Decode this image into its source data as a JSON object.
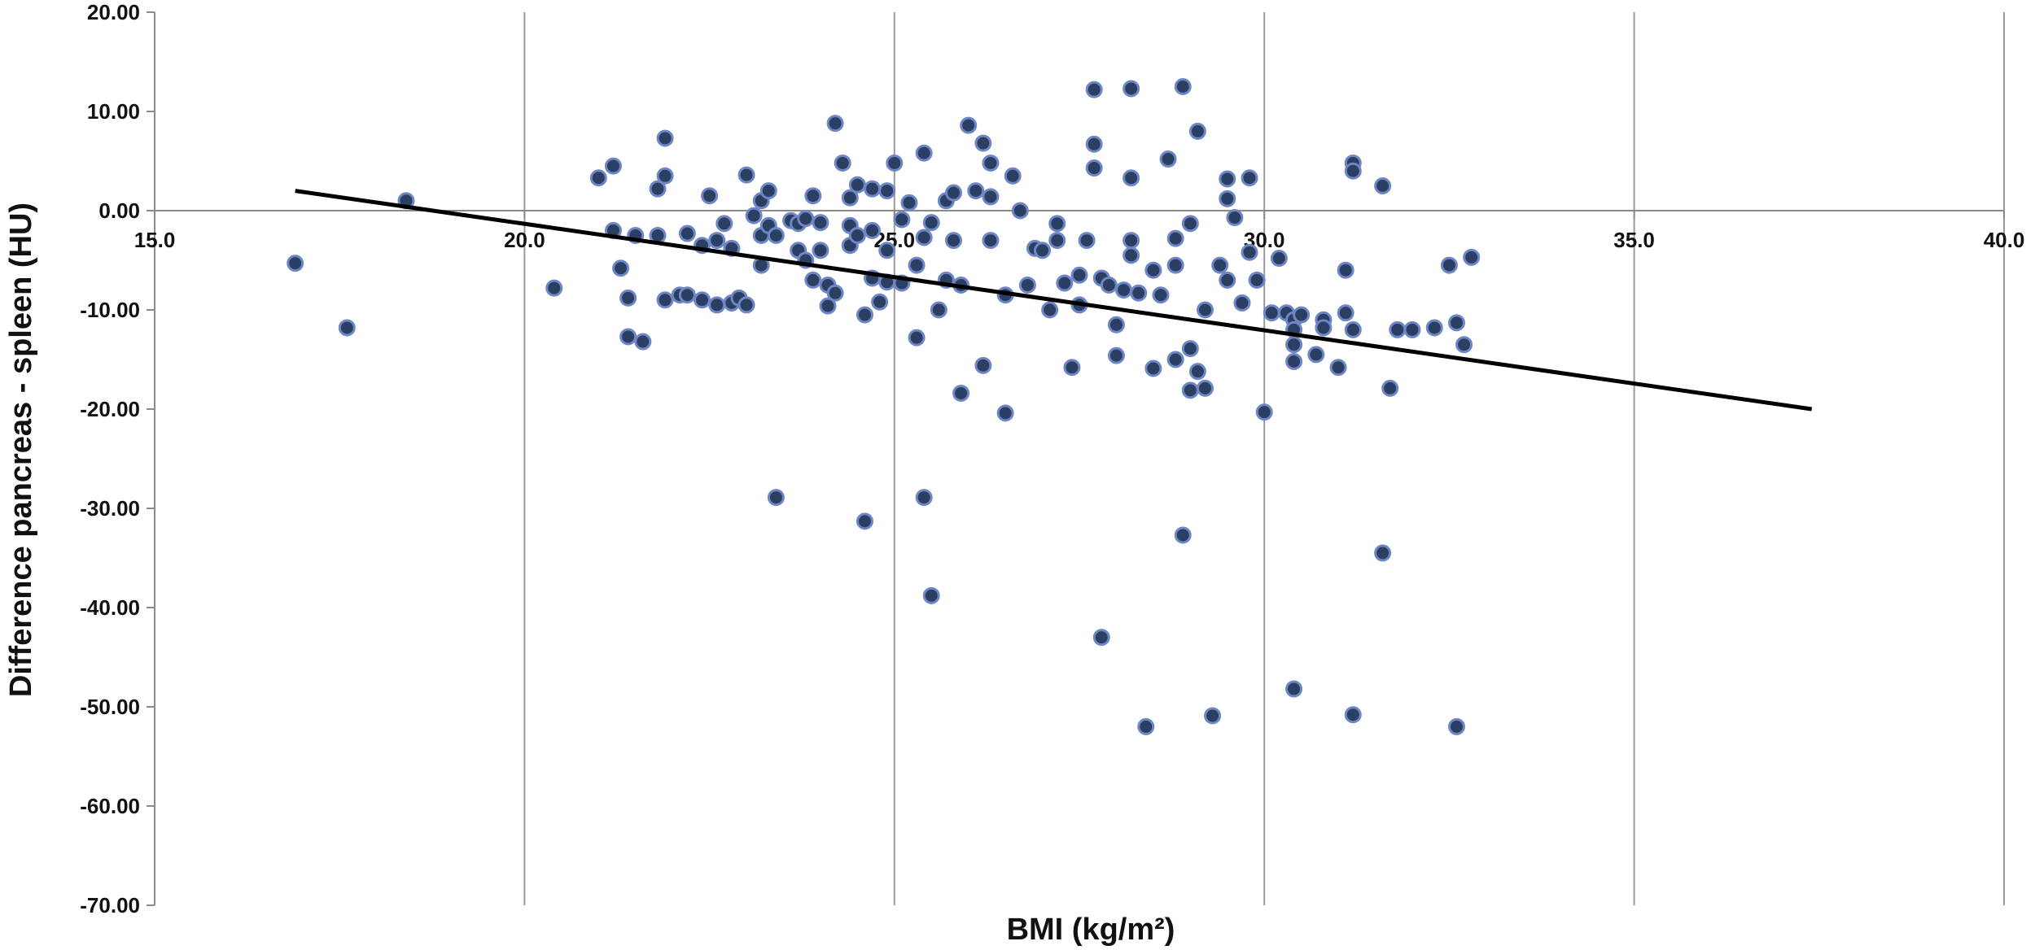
{
  "chart_data": {
    "type": "scatter",
    "xlabel": "BMI (kg/m²)",
    "ylabel": "Difference pancreas - spleen (HU)",
    "xlim": [
      15.0,
      40.0
    ],
    "ylim": [
      -70.0,
      20.0
    ],
    "x_ticks": [
      "15.0",
      "20.0",
      "25.0",
      "30.0",
      "35.0",
      "40.0"
    ],
    "x_tick_values": [
      15,
      20,
      25,
      30,
      35,
      40
    ],
    "y_ticks": [
      "20.00",
      "10.00",
      "0.00",
      "-10.00",
      "-20.00",
      "-30.00",
      "-40.00",
      "-50.00",
      "-60.00",
      "-70.00"
    ],
    "y_tick_values": [
      20,
      10,
      0,
      -10,
      -20,
      -30,
      -40,
      -50,
      -60,
      -70
    ],
    "x_axis_crosses_at": 0,
    "grid": {
      "vertical": true,
      "horizontal": false
    },
    "colors": {
      "marker_fill": "#2b3f63",
      "marker_edge": "#6e86c4",
      "trend_line": "#000000",
      "grid": "#9a9a9a"
    },
    "trendline": {
      "x": [
        16.9,
        37.4
      ],
      "y": [
        2.0,
        -20.0
      ]
    },
    "points": [
      [
        16.9,
        -5.3
      ],
      [
        17.6,
        -11.8
      ],
      [
        18.4,
        1.0
      ],
      [
        20.4,
        -7.8
      ],
      [
        21.0,
        3.3
      ],
      [
        21.2,
        4.5
      ],
      [
        21.2,
        -2.0
      ],
      [
        21.3,
        -5.8
      ],
      [
        21.4,
        -8.8
      ],
      [
        21.4,
        -12.7
      ],
      [
        21.5,
        -2.5
      ],
      [
        21.6,
        -13.2
      ],
      [
        21.8,
        2.2
      ],
      [
        21.8,
        -2.5
      ],
      [
        21.9,
        3.5
      ],
      [
        21.9,
        7.3
      ],
      [
        21.9,
        -9.0
      ],
      [
        22.1,
        -8.5
      ],
      [
        22.2,
        -2.3
      ],
      [
        22.2,
        -8.5
      ],
      [
        22.4,
        -3.5
      ],
      [
        22.4,
        -9.0
      ],
      [
        22.5,
        1.5
      ],
      [
        22.6,
        -3.0
      ],
      [
        22.6,
        -9.5
      ],
      [
        22.7,
        -1.3
      ],
      [
        22.8,
        -9.3
      ],
      [
        22.8,
        -3.8
      ],
      [
        22.9,
        -8.8
      ],
      [
        23.0,
        3.6
      ],
      [
        23.0,
        -9.5
      ],
      [
        23.1,
        -0.5
      ],
      [
        23.2,
        1.0
      ],
      [
        23.2,
        -5.5
      ],
      [
        23.2,
        -2.5
      ],
      [
        23.3,
        2.0
      ],
      [
        23.3,
        -1.5
      ],
      [
        23.4,
        -2.5
      ],
      [
        23.4,
        -28.9
      ],
      [
        23.6,
        -1.0
      ],
      [
        23.7,
        -1.3
      ],
      [
        23.7,
        -4.0
      ],
      [
        23.8,
        -0.8
      ],
      [
        23.8,
        -5.0
      ],
      [
        23.9,
        -7.0
      ],
      [
        23.9,
        1.5
      ],
      [
        24.0,
        -4.0
      ],
      [
        24.0,
        -1.2
      ],
      [
        24.1,
        -7.5
      ],
      [
        24.1,
        -9.6
      ],
      [
        24.2,
        8.8
      ],
      [
        24.2,
        -8.3
      ],
      [
        24.3,
        4.8
      ],
      [
        24.4,
        -1.5
      ],
      [
        24.4,
        -3.5
      ],
      [
        24.4,
        1.3
      ],
      [
        24.5,
        2.6
      ],
      [
        24.5,
        -2.5
      ],
      [
        24.6,
        -10.5
      ],
      [
        24.6,
        -31.3
      ],
      [
        24.7,
        2.2
      ],
      [
        24.7,
        -2.0
      ],
      [
        24.7,
        -6.8
      ],
      [
        24.8,
        -9.2
      ],
      [
        24.9,
        2.0
      ],
      [
        24.9,
        -4.0
      ],
      [
        24.9,
        -7.2
      ],
      [
        25.0,
        4.8
      ],
      [
        25.1,
        -7.3
      ],
      [
        25.1,
        -0.9
      ],
      [
        25.2,
        0.8
      ],
      [
        25.3,
        -12.8
      ],
      [
        25.3,
        -5.5
      ],
      [
        25.4,
        -2.7
      ],
      [
        25.4,
        5.8
      ],
      [
        25.4,
        -28.9
      ],
      [
        25.5,
        -1.2
      ],
      [
        25.5,
        -38.8
      ],
      [
        25.6,
        -10.0
      ],
      [
        25.7,
        -7.0
      ],
      [
        25.7,
        1.0
      ],
      [
        25.8,
        1.8
      ],
      [
        25.8,
        -3.0
      ],
      [
        25.9,
        -7.5
      ],
      [
        25.9,
        -18.4
      ],
      [
        26.0,
        8.6
      ],
      [
        26.1,
        2.0
      ],
      [
        26.2,
        6.8
      ],
      [
        26.2,
        -15.6
      ],
      [
        26.3,
        1.4
      ],
      [
        26.3,
        -3.0
      ],
      [
        26.3,
        4.8
      ],
      [
        26.5,
        -20.4
      ],
      [
        26.5,
        -8.5
      ],
      [
        26.6,
        3.5
      ],
      [
        26.7,
        0.0
      ],
      [
        26.8,
        -7.5
      ],
      [
        26.9,
        -3.8
      ],
      [
        27.0,
        -4.0
      ],
      [
        27.1,
        -10.0
      ],
      [
        27.2,
        -3.0
      ],
      [
        27.2,
        -1.3
      ],
      [
        27.3,
        -7.3
      ],
      [
        27.4,
        -15.8
      ],
      [
        27.5,
        -6.5
      ],
      [
        27.5,
        -9.5
      ],
      [
        27.6,
        -3.0
      ],
      [
        27.7,
        12.2
      ],
      [
        27.7,
        6.7
      ],
      [
        27.7,
        4.3
      ],
      [
        27.8,
        -6.8
      ],
      [
        27.8,
        -43.0
      ],
      [
        27.9,
        -7.5
      ],
      [
        28.0,
        -11.5
      ],
      [
        28.0,
        -14.6
      ],
      [
        28.1,
        -8.0
      ],
      [
        28.2,
        12.3
      ],
      [
        28.2,
        3.3
      ],
      [
        28.2,
        -3.0
      ],
      [
        28.2,
        -4.5
      ],
      [
        28.3,
        -8.3
      ],
      [
        28.4,
        -52.0
      ],
      [
        28.5,
        -6.0
      ],
      [
        28.5,
        -15.9
      ],
      [
        28.6,
        -8.5
      ],
      [
        28.7,
        5.2
      ],
      [
        28.8,
        -15.0
      ],
      [
        28.8,
        -5.5
      ],
      [
        28.8,
        -2.8
      ],
      [
        28.9,
        -32.7
      ],
      [
        28.9,
        12.5
      ],
      [
        29.0,
        -1.3
      ],
      [
        29.0,
        -13.9
      ],
      [
        29.0,
        -18.1
      ],
      [
        29.1,
        -16.2
      ],
      [
        29.1,
        8.0
      ],
      [
        29.2,
        -10.0
      ],
      [
        29.2,
        -17.9
      ],
      [
        29.3,
        -50.9
      ],
      [
        29.4,
        -5.5
      ],
      [
        29.5,
        -7.0
      ],
      [
        29.5,
        3.2
      ],
      [
        29.5,
        1.2
      ],
      [
        29.6,
        -0.7
      ],
      [
        29.7,
        -9.3
      ],
      [
        29.8,
        3.3
      ],
      [
        29.8,
        -4.2
      ],
      [
        29.9,
        -7.0
      ],
      [
        30.0,
        -20.3
      ],
      [
        30.1,
        -10.3
      ],
      [
        30.2,
        -4.8
      ],
      [
        30.3,
        -10.3
      ],
      [
        30.4,
        -11.0
      ],
      [
        30.4,
        -12.0
      ],
      [
        30.4,
        -13.5
      ],
      [
        30.4,
        -15.2
      ],
      [
        30.4,
        -48.2
      ],
      [
        30.5,
        -10.5
      ],
      [
        30.7,
        -14.5
      ],
      [
        30.8,
        -11.0
      ],
      [
        30.8,
        -11.8
      ],
      [
        31.0,
        -15.8
      ],
      [
        31.1,
        -6.0
      ],
      [
        31.1,
        -10.3
      ],
      [
        31.2,
        4.8
      ],
      [
        31.2,
        4.0
      ],
      [
        31.2,
        -12.0
      ],
      [
        31.2,
        -50.8
      ],
      [
        31.6,
        2.5
      ],
      [
        31.6,
        -34.5
      ],
      [
        31.7,
        -17.9
      ],
      [
        31.8,
        -12.0
      ],
      [
        32.0,
        -12.0
      ],
      [
        32.3,
        -11.8
      ],
      [
        32.5,
        -5.5
      ],
      [
        32.6,
        -11.3
      ],
      [
        32.6,
        -52.0
      ],
      [
        32.7,
        -13.5
      ],
      [
        32.8,
        -4.7
      ]
    ]
  }
}
